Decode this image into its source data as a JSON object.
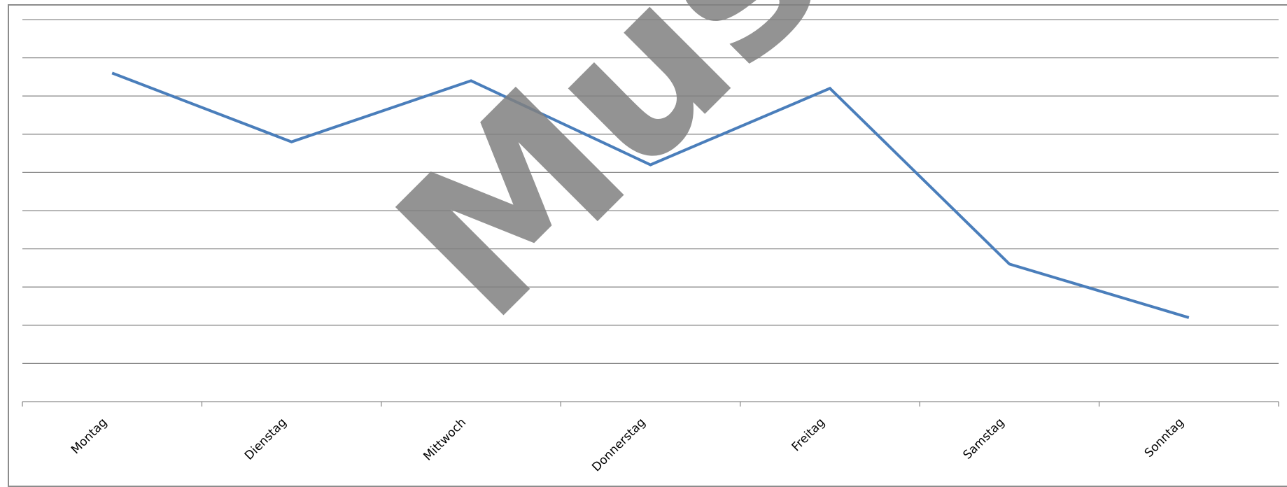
{
  "chart_data": {
    "type": "line",
    "title": "",
    "xlabel": "",
    "ylabel": "",
    "categories": [
      "Montag",
      "Dienstag",
      "Mittwoch",
      "Donnerstag",
      "Freitag",
      "Samstag",
      "Sonntag"
    ],
    "series": [
      {
        "values": [
          8.6,
          6.8,
          8.4,
          6.2,
          8.2,
          3.6,
          2.2
        ],
        "color": "#4a7ebb"
      }
    ],
    "ylim": [
      0,
      10
    ],
    "y_gridlines": [
      1,
      2,
      3,
      4,
      5,
      6,
      7,
      8,
      9,
      10
    ],
    "grid": true,
    "y_axis_labels_visible": false,
    "legend": "none",
    "watermark": {
      "text": "Muster",
      "color": "#808080"
    }
  }
}
